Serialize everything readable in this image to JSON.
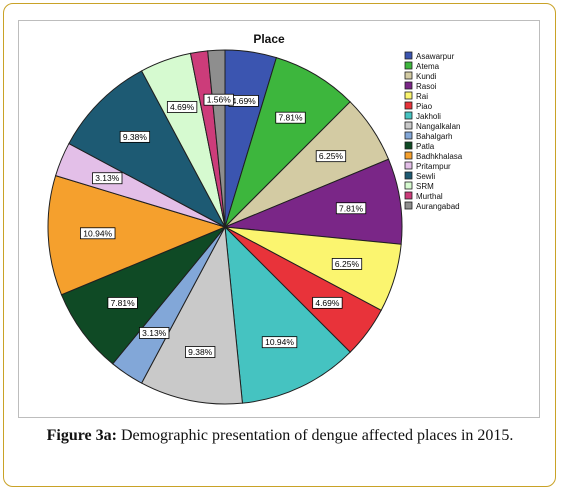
{
  "chart_data": {
    "type": "pie",
    "title": "Place",
    "legend_position": "right",
    "slices": [
      {
        "label": "Asawarpur",
        "value": 4.69,
        "display": "4.69%",
        "color": "#3b55b0"
      },
      {
        "label": "Atema",
        "value": 7.81,
        "display": "7.81%",
        "color": "#3db63d"
      },
      {
        "label": "Kundi",
        "value": 6.25,
        "display": "6.25%",
        "color": "#d3cba3"
      },
      {
        "label": "Rasoi",
        "value": 7.81,
        "display": "7.81%",
        "color": "#7a2687"
      },
      {
        "label": "Rai",
        "value": 6.25,
        "display": "6.25%",
        "color": "#fbf56f"
      },
      {
        "label": "Piao",
        "value": 4.69,
        "display": "4.69%",
        "color": "#e8333a"
      },
      {
        "label": "Jakholi",
        "value": 10.94,
        "display": "10.94%",
        "color": "#45c3c1"
      },
      {
        "label": "Nangalkalan",
        "value": 9.38,
        "display": "9.38%",
        "color": "#c9c9c9"
      },
      {
        "label": "Bahalgarh",
        "value": 3.13,
        "display": "3.13%",
        "color": "#82a7d8"
      },
      {
        "label": "Patla",
        "value": 7.81,
        "display": "7.81%",
        "color": "#0f4a25"
      },
      {
        "label": "Badhkhalasa",
        "value": 10.94,
        "display": "10.94%",
        "color": "#f5a02d"
      },
      {
        "label": "Pritampur",
        "value": 3.13,
        "display": "3.13%",
        "color": "#e3bfe8"
      },
      {
        "label": "Sewli",
        "value": 9.38,
        "display": "9.38%",
        "color": "#1d5a73"
      },
      {
        "label": "SRM",
        "value": 4.69,
        "display": "4.69%",
        "color": "#d6fad0"
      },
      {
        "label": "Murthal",
        "value": 1.56,
        "display": "",
        "color": "#cc3c7a"
      },
      {
        "label": "Aurangabad",
        "value": 1.56,
        "display": "1.56%",
        "color": "#8e8e8e"
      }
    ]
  },
  "caption": {
    "label": "Figure 3a:",
    "text": " Demographic presentation of dengue affected places in 2015."
  }
}
